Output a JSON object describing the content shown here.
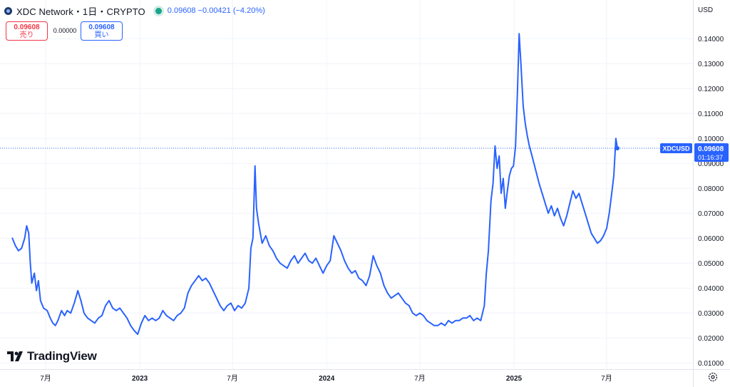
{
  "header": {
    "title": "XDC Network・1日・CRYPTO",
    "quote": "0.09608  −0.00421 (−4.20%)"
  },
  "trade": {
    "sell_price": "0.09608",
    "sell_label": "売り",
    "spread": "0.00000",
    "buy_price": "0.09608",
    "buy_label": "買い"
  },
  "currency": "USD",
  "logo_text": "TradingView",
  "price_tag": {
    "symbol": "XDCUSD",
    "price": "0.09608",
    "countdown": "01:16:37"
  },
  "colors": {
    "line": "#2962ff",
    "sell": "#f23645",
    "buy": "#2962ff",
    "live": "#1aa38a"
  },
  "chart_data": {
    "type": "line",
    "title": "",
    "xlabel": "",
    "ylabel": "",
    "y_axis_position": "right",
    "grid": true,
    "ylim": [
      0.0075,
      0.1555
    ],
    "x_ticks": [
      {
        "label": "7月",
        "date": "2022-07-01"
      },
      {
        "label": "2023",
        "date": "2023-01-01"
      },
      {
        "label": "7月",
        "date": "2023-07-01"
      },
      {
        "label": "2024",
        "date": "2024-01-01"
      },
      {
        "label": "7月",
        "date": "2024-07-01"
      },
      {
        "label": "2025",
        "date": "2025-01-01"
      },
      {
        "label": "7月",
        "date": "2025-07-01"
      }
    ],
    "y_ticks": [
      "0.01000",
      "0.02000",
      "0.03000",
      "0.04000",
      "0.05000",
      "0.06000",
      "0.07000",
      "0.08000",
      "0.09000",
      "0.10000",
      "0.11000",
      "0.12000",
      "0.13000",
      "0.14000"
    ],
    "last_value": 0.09608,
    "series": [
      {
        "points": [
          [
            "2022-04-27",
            0.06
          ],
          [
            "2022-05-03",
            0.057
          ],
          [
            "2022-05-09",
            0.055
          ],
          [
            "2022-05-15",
            0.056
          ],
          [
            "2022-05-21",
            0.06
          ],
          [
            "2022-05-25",
            0.065
          ],
          [
            "2022-05-29",
            0.062
          ],
          [
            "2022-06-01",
            0.05
          ],
          [
            "2022-06-04",
            0.042
          ],
          [
            "2022-06-09",
            0.046
          ],
          [
            "2022-06-13",
            0.039
          ],
          [
            "2022-06-17",
            0.043
          ],
          [
            "2022-06-21",
            0.035
          ],
          [
            "2022-06-27",
            0.032
          ],
          [
            "2022-07-04",
            0.031
          ],
          [
            "2022-07-10",
            0.028
          ],
          [
            "2022-07-15",
            0.026
          ],
          [
            "2022-07-20",
            0.025
          ],
          [
            "2022-07-25",
            0.027
          ],
          [
            "2022-08-01",
            0.031
          ],
          [
            "2022-08-07",
            0.029
          ],
          [
            "2022-08-12",
            0.031
          ],
          [
            "2022-08-19",
            0.03
          ],
          [
            "2022-08-26",
            0.034
          ],
          [
            "2022-09-02",
            0.039
          ],
          [
            "2022-09-08",
            0.035
          ],
          [
            "2022-09-14",
            0.03
          ],
          [
            "2022-09-21",
            0.028
          ],
          [
            "2022-09-28",
            0.027
          ],
          [
            "2022-10-05",
            0.026
          ],
          [
            "2022-10-12",
            0.028
          ],
          [
            "2022-10-19",
            0.029
          ],
          [
            "2022-10-26",
            0.033
          ],
          [
            "2022-11-02",
            0.035
          ],
          [
            "2022-11-09",
            0.032
          ],
          [
            "2022-11-16",
            0.031
          ],
          [
            "2022-11-23",
            0.032
          ],
          [
            "2022-11-30",
            0.03
          ],
          [
            "2022-12-07",
            0.028
          ],
          [
            "2022-12-14",
            0.025
          ],
          [
            "2022-12-21",
            0.023
          ],
          [
            "2022-12-28",
            0.0215
          ],
          [
            "2023-01-04",
            0.026
          ],
          [
            "2023-01-11",
            0.029
          ],
          [
            "2023-01-18",
            0.027
          ],
          [
            "2023-01-25",
            0.028
          ],
          [
            "2023-02-01",
            0.027
          ],
          [
            "2023-02-08",
            0.028
          ],
          [
            "2023-02-15",
            0.031
          ],
          [
            "2023-02-22",
            0.029
          ],
          [
            "2023-03-01",
            0.028
          ],
          [
            "2023-03-08",
            0.027
          ],
          [
            "2023-03-15",
            0.029
          ],
          [
            "2023-03-22",
            0.03
          ],
          [
            "2023-03-29",
            0.032
          ],
          [
            "2023-04-05",
            0.038
          ],
          [
            "2023-04-12",
            0.041
          ],
          [
            "2023-04-19",
            0.043
          ],
          [
            "2023-04-26",
            0.045
          ],
          [
            "2023-05-03",
            0.043
          ],
          [
            "2023-05-10",
            0.044
          ],
          [
            "2023-05-17",
            0.042
          ],
          [
            "2023-05-24",
            0.039
          ],
          [
            "2023-05-31",
            0.036
          ],
          [
            "2023-06-07",
            0.033
          ],
          [
            "2023-06-14",
            0.031
          ],
          [
            "2023-06-21",
            0.033
          ],
          [
            "2023-06-28",
            0.034
          ],
          [
            "2023-07-05",
            0.031
          ],
          [
            "2023-07-12",
            0.033
          ],
          [
            "2023-07-19",
            0.032
          ],
          [
            "2023-07-26",
            0.034
          ],
          [
            "2023-08-02",
            0.04
          ],
          [
            "2023-08-06",
            0.056
          ],
          [
            "2023-08-10",
            0.06
          ],
          [
            "2023-08-14",
            0.089
          ],
          [
            "2023-08-17",
            0.072
          ],
          [
            "2023-08-21",
            0.066
          ],
          [
            "2023-08-28",
            0.058
          ],
          [
            "2023-09-04",
            0.061
          ],
          [
            "2023-09-11",
            0.057
          ],
          [
            "2023-09-18",
            0.055
          ],
          [
            "2023-09-25",
            0.052
          ],
          [
            "2023-10-02",
            0.05
          ],
          [
            "2023-10-09",
            0.049
          ],
          [
            "2023-10-16",
            0.048
          ],
          [
            "2023-10-23",
            0.051
          ],
          [
            "2023-10-30",
            0.053
          ],
          [
            "2023-11-06",
            0.05
          ],
          [
            "2023-11-13",
            0.052
          ],
          [
            "2023-11-20",
            0.054
          ],
          [
            "2023-11-27",
            0.051
          ],
          [
            "2023-12-04",
            0.05
          ],
          [
            "2023-12-11",
            0.052
          ],
          [
            "2023-12-18",
            0.049
          ],
          [
            "2023-12-25",
            0.046
          ],
          [
            "2024-01-01",
            0.049
          ],
          [
            "2024-01-08",
            0.051
          ],
          [
            "2024-01-15",
            0.061
          ],
          [
            "2024-01-22",
            0.058
          ],
          [
            "2024-01-29",
            0.055
          ],
          [
            "2024-02-05",
            0.051
          ],
          [
            "2024-02-12",
            0.048
          ],
          [
            "2024-02-19",
            0.046
          ],
          [
            "2024-02-26",
            0.047
          ],
          [
            "2024-03-04",
            0.044
          ],
          [
            "2024-03-11",
            0.043
          ],
          [
            "2024-03-18",
            0.041
          ],
          [
            "2024-03-25",
            0.045
          ],
          [
            "2024-04-01",
            0.053
          ],
          [
            "2024-04-08",
            0.049
          ],
          [
            "2024-04-15",
            0.046
          ],
          [
            "2024-04-22",
            0.041
          ],
          [
            "2024-04-29",
            0.038
          ],
          [
            "2024-05-06",
            0.036
          ],
          [
            "2024-05-13",
            0.037
          ],
          [
            "2024-05-20",
            0.038
          ],
          [
            "2024-05-27",
            0.036
          ],
          [
            "2024-06-03",
            0.034
          ],
          [
            "2024-06-10",
            0.033
          ],
          [
            "2024-06-17",
            0.03
          ],
          [
            "2024-06-24",
            0.029
          ],
          [
            "2024-07-01",
            0.03
          ],
          [
            "2024-07-08",
            0.029
          ],
          [
            "2024-07-15",
            0.027
          ],
          [
            "2024-07-22",
            0.026
          ],
          [
            "2024-07-29",
            0.025
          ],
          [
            "2024-08-05",
            0.025
          ],
          [
            "2024-08-12",
            0.026
          ],
          [
            "2024-08-19",
            0.025
          ],
          [
            "2024-08-26",
            0.027
          ],
          [
            "2024-09-02",
            0.026
          ],
          [
            "2024-09-09",
            0.027
          ],
          [
            "2024-09-16",
            0.027
          ],
          [
            "2024-09-23",
            0.028
          ],
          [
            "2024-09-30",
            0.028
          ],
          [
            "2024-10-07",
            0.029
          ],
          [
            "2024-10-14",
            0.027
          ],
          [
            "2024-10-21",
            0.028
          ],
          [
            "2024-10-28",
            0.027
          ],
          [
            "2024-11-04",
            0.033
          ],
          [
            "2024-11-08",
            0.046
          ],
          [
            "2024-11-12",
            0.055
          ],
          [
            "2024-11-17",
            0.075
          ],
          [
            "2024-11-21",
            0.082
          ],
          [
            "2024-11-25",
            0.097
          ],
          [
            "2024-11-29",
            0.088
          ],
          [
            "2024-12-03",
            0.093
          ],
          [
            "2024-12-07",
            0.078
          ],
          [
            "2024-12-11",
            0.084
          ],
          [
            "2024-12-15",
            0.072
          ],
          [
            "2024-12-19",
            0.079
          ],
          [
            "2024-12-23",
            0.085
          ],
          [
            "2024-12-27",
            0.088
          ],
          [
            "2024-12-31",
            0.089
          ],
          [
            "2025-01-04",
            0.097
          ],
          [
            "2025-01-08",
            0.12
          ],
          [
            "2025-01-11",
            0.142
          ],
          [
            "2025-01-15",
            0.128
          ],
          [
            "2025-01-19",
            0.113
          ],
          [
            "2025-01-23",
            0.106
          ],
          [
            "2025-01-27",
            0.101
          ],
          [
            "2025-01-31",
            0.097
          ],
          [
            "2025-02-04",
            0.094
          ],
          [
            "2025-02-09",
            0.09
          ],
          [
            "2025-02-14",
            0.086
          ],
          [
            "2025-02-19",
            0.082
          ],
          [
            "2025-02-25",
            0.078
          ],
          [
            "2025-03-03",
            0.074
          ],
          [
            "2025-03-09",
            0.07
          ],
          [
            "2025-03-15",
            0.073
          ],
          [
            "2025-03-21",
            0.069
          ],
          [
            "2025-03-27",
            0.072
          ],
          [
            "2025-04-02",
            0.068
          ],
          [
            "2025-04-08",
            0.065
          ],
          [
            "2025-04-14",
            0.069
          ],
          [
            "2025-04-20",
            0.074
          ],
          [
            "2025-04-26",
            0.079
          ],
          [
            "2025-05-02",
            0.076
          ],
          [
            "2025-05-08",
            0.078
          ],
          [
            "2025-05-14",
            0.074
          ],
          [
            "2025-05-20",
            0.07
          ],
          [
            "2025-05-26",
            0.066
          ],
          [
            "2025-06-01",
            0.062
          ],
          [
            "2025-06-07",
            0.06
          ],
          [
            "2025-06-13",
            0.058
          ],
          [
            "2025-06-19",
            0.059
          ],
          [
            "2025-06-25",
            0.061
          ],
          [
            "2025-07-01",
            0.064
          ],
          [
            "2025-07-06",
            0.07
          ],
          [
            "2025-07-11",
            0.078
          ],
          [
            "2025-07-15",
            0.085
          ],
          [
            "2025-07-19",
            0.1
          ],
          [
            "2025-07-22",
            0.09608
          ]
        ]
      }
    ]
  }
}
